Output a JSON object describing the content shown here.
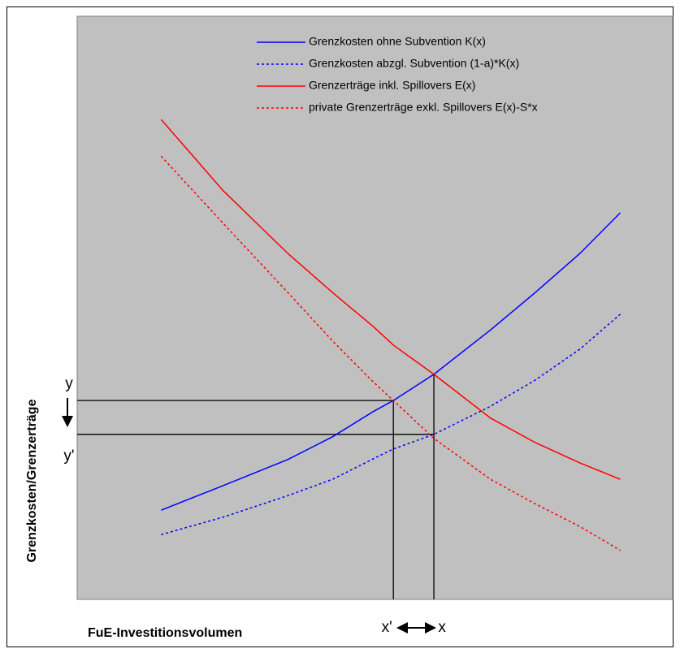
{
  "chart_data": {
    "type": "line",
    "x_label": "FuE-Investitionsvolumen",
    "y_label": "Grenzkosten/Grenzerträge",
    "xlim": [
      0,
      100
    ],
    "ylim": [
      0,
      100
    ],
    "background": "#c0c0c0",
    "legend": "top-right",
    "x": [
      14.1,
      24.5,
      35.4,
      42.9,
      49.7,
      53.1,
      59.9,
      69.4,
      76.9,
      84.4,
      91.2
    ],
    "series": [
      {
        "name": "Grenzkosten ohne Subvention K(x)",
        "color": "#0000ff",
        "dashed": false,
        "values": [
          15.3,
          19.5,
          24.0,
          27.9,
          32.2,
          34.1,
          38.6,
          46.2,
          52.6,
          59.3,
          66.3
        ]
      },
      {
        "name": "Grenzkosten abzgl. Subvention (1-a)*K(x)",
        "color": "#0000ff",
        "dashed": true,
        "values": [
          11.1,
          14.1,
          17.8,
          20.6,
          24.1,
          25.8,
          28.3,
          33.1,
          37.6,
          42.9,
          48.9
        ]
      },
      {
        "name": "Grenzerträge inkl. Spillovers E(x)",
        "color": "#ff0000",
        "dashed": false,
        "values": [
          82.3,
          70.1,
          59.3,
          52.6,
          46.8,
          43.6,
          38.6,
          31.1,
          26.9,
          23.4,
          20.6
        ]
      },
      {
        "name": "private Grenzerträge exkl. Spillovers E(x)-S*x",
        "color": "#ff0000",
        "dashed": true,
        "values": [
          76.0,
          64.5,
          52.6,
          44.3,
          37.3,
          34.1,
          27.6,
          20.6,
          16.4,
          12.5,
          8.4
        ]
      }
    ],
    "x_markers": [
      {
        "label": "x'",
        "x": 53.1,
        "y": 34.1
      },
      {
        "label": "x",
        "x": 59.9,
        "y": 38.6
      }
    ],
    "y_markers": [
      {
        "label": "y",
        "x": 53.1,
        "y": 34.1
      },
      {
        "label": "y'",
        "x": 59.9,
        "y": 28.3
      }
    ]
  }
}
